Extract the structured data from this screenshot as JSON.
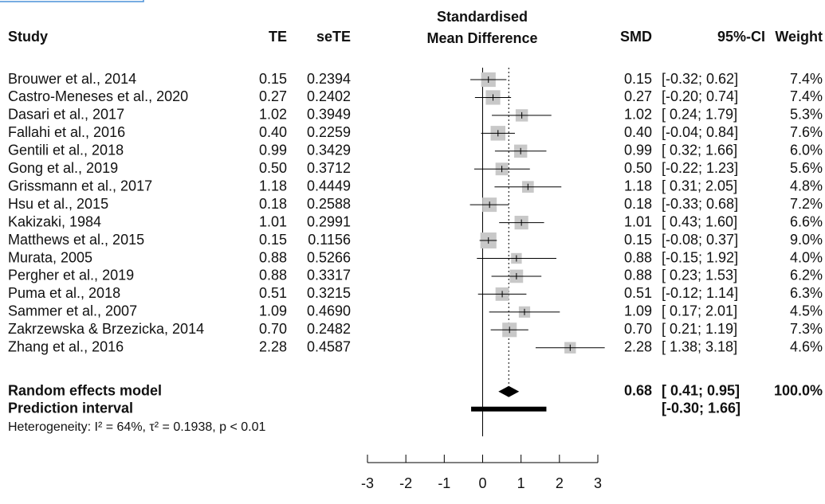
{
  "chart_data": {
    "type": "forest",
    "title": "Standardised Mean Difference",
    "columns": [
      "Study",
      "TE",
      "seTE",
      "SMD",
      "95%-CI",
      "Weight"
    ],
    "studies": [
      "Brouwer et al., 2014",
      "Castro-Meneses et al., 2020",
      "Dasari et al., 2017",
      "Fallahi et al., 2016",
      "Gentili et al., 2018",
      "Gong et al., 2019",
      "Grissmann et al., 2017",
      "Hsu et al., 2015",
      "Kakizaki, 1984",
      "Matthews et al., 2015",
      "Murata, 2005",
      "Pergher et al., 2019",
      "Puma et al., 2018",
      "Sammer et al., 2007",
      "Zakrzewska & Brzezicka, 2014",
      "Zhang et al., 2016"
    ],
    "values": [
      0.15,
      0.27,
      1.02,
      0.4,
      0.99,
      0.5,
      1.18,
      0.18,
      1.01,
      0.15,
      0.88,
      0.88,
      0.51,
      1.09,
      0.7,
      2.28
    ],
    "value_labels": [
      "0.15",
      "0.27",
      "1.02",
      "0.40",
      "0.99",
      "0.50",
      "1.18",
      "0.18",
      "1.01",
      "0.15",
      "0.88",
      "0.88",
      "0.51",
      "1.09",
      "0.70",
      "2.28"
    ],
    "se": [
      0.2394,
      0.2402,
      0.3949,
      0.2259,
      0.3429,
      0.3712,
      0.4449,
      0.2588,
      0.2991,
      0.1156,
      0.5266,
      0.3317,
      0.3215,
      0.469,
      0.2482,
      0.4587
    ],
    "se_labels": [
      "0.2394",
      "0.2402",
      "0.3949",
      "0.2259",
      "0.3429",
      "0.3712",
      "0.4449",
      "0.2588",
      "0.2991",
      "0.1156",
      "0.5266",
      "0.3317",
      "0.3215",
      "0.4690",
      "0.2482",
      "0.4587"
    ],
    "lower": [
      -0.32,
      -0.2,
      0.24,
      -0.04,
      0.32,
      -0.22,
      0.31,
      -0.33,
      0.43,
      -0.08,
      -0.15,
      0.23,
      -0.12,
      0.17,
      0.21,
      1.38
    ],
    "upper": [
      0.62,
      0.74,
      1.79,
      0.84,
      1.66,
      1.23,
      2.05,
      0.68,
      1.6,
      0.37,
      1.92,
      1.53,
      1.14,
      2.01,
      1.19,
      3.18
    ],
    "ci_labels": [
      "[-0.32; 0.62]",
      "[-0.20; 0.74]",
      "[ 0.24; 1.79]",
      "[-0.04; 0.84]",
      "[ 0.32; 1.66]",
      "[-0.22; 1.23]",
      "[ 0.31; 2.05]",
      "[-0.33; 0.68]",
      "[ 0.43; 1.60]",
      "[-0.08; 0.37]",
      "[-0.15; 1.92]",
      "[ 0.23; 1.53]",
      "[-0.12; 1.14]",
      "[ 0.17; 2.01]",
      "[ 0.21; 1.19]",
      "[ 1.38; 3.18]"
    ],
    "weights": [
      7.4,
      7.4,
      5.3,
      7.6,
      6.0,
      5.6,
      4.8,
      7.2,
      6.6,
      9.0,
      4.0,
      6.2,
      6.3,
      4.5,
      7.3,
      4.6
    ],
    "weight_labels": [
      "7.4%",
      "7.4%",
      "5.3%",
      "7.6%",
      "6.0%",
      "5.6%",
      "4.8%",
      "7.2%",
      "6.6%",
      "9.0%",
      "4.0%",
      "6.2%",
      "6.3%",
      "4.5%",
      "7.3%",
      "4.6%"
    ],
    "summary": {
      "label": "Random effects model",
      "value": 0.68,
      "value_label": "0.68",
      "lower": 0.41,
      "upper": 0.95,
      "ci_label": "[ 0.41; 0.95]",
      "weight": 100.0,
      "weight_label": "100.0%"
    },
    "prediction": {
      "label": "Prediction interval",
      "lower": -0.3,
      "upper": 1.66,
      "ci_label": "[-0.30; 1.66]"
    },
    "heterogeneity": "Heterogeneity: I² = 64%, τ² = 0.1938, p < 0.01",
    "xlim": [
      -3,
      3
    ],
    "xticks": [
      -3,
      -2,
      -1,
      0,
      1,
      2,
      3
    ],
    "marker_color": "#c8c8c8"
  }
}
